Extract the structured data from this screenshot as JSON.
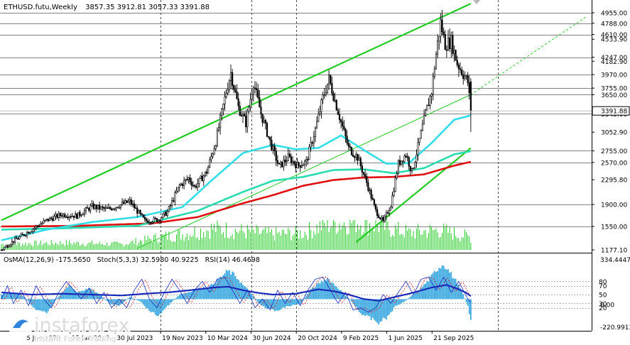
{
  "header": {
    "symbol": "ETHUSD.futu,Weekly",
    "ohlc": "3857.35 3912.81 3057.33 3391.88"
  },
  "osc_header": {
    "osma": "OsMA(12,26,9) -175.5650",
    "stoch": "Stoch(5,3,3) 32.5980 40.9225",
    "rsi": "RSI(14) 46.4698"
  },
  "watermark": {
    "brand": "instaforex",
    "tagline": "Instant Forex Trading"
  },
  "colors": {
    "price_bars": "#000000",
    "ma_fast": "#33dde8",
    "ma_mid": "#2adcb0",
    "ma_slow": "#e01010",
    "channel": "#22cc22",
    "volume": "#22cc22",
    "osma_hist": "#3aa8e0",
    "stoch_main": "#1a2ab8",
    "stoch_signal": "#e01010",
    "level_line": "#5a5a5a",
    "grid": "#202020",
    "current_price_box": "#000000"
  },
  "chart_data": [
    {
      "type": "candlestick",
      "title": "ETHUSD.futu,Weekly",
      "ohlc_last": {
        "open": 3857.35,
        "high": 3912.81,
        "low": 3057.33,
        "close": 3391.88
      },
      "x_tick_labels": [
        "5 Jun 2022",
        "15 Jan 2023",
        "30 Jul 2023",
        "19 Nov 2023",
        "10 Mar 2024",
        "30 Jun 2024",
        "20 Oct 2024",
        "9 Feb 2025",
        "1 Jun 2025",
        "21 Sep 2025"
      ],
      "x_dividers": [
        3,
        5,
        6
      ],
      "y_tick_labels": [
        {
          "value": 4955.0,
          "label": "4955.00"
        },
        {
          "value": 4788.0,
          "label": "4788.00"
        },
        {
          "value": 4610.0,
          "label": "4610.00"
        },
        {
          "value": 4533.9,
          "label": "4533.90"
        },
        {
          "value": 4247.0,
          "label": "4247.00"
        },
        {
          "value": 4182.9,
          "label": "4182.90"
        },
        {
          "value": 3970.0,
          "label": "3970.00"
        },
        {
          "value": 3755.0,
          "label": "3755.00"
        },
        {
          "value": 3650.0,
          "label": "3650.00"
        },
        {
          "value": 3345.0,
          "label": "3345.00"
        },
        {
          "value": 3052.9,
          "label": "3052.90"
        },
        {
          "value": 2755.0,
          "label": "2755.00"
        },
        {
          "value": 2570.0,
          "label": "2570.00"
        },
        {
          "value": 2295.8,
          "label": "2295.80"
        },
        {
          "value": 1900.0,
          "label": "1900.00"
        },
        {
          "value": 1550.0,
          "label": "1550.00"
        },
        {
          "value": 1177.1,
          "label": "1177.10"
        }
      ],
      "horizontal_levels": [
        4955,
        4788,
        4610,
        4247,
        3970,
        3755,
        3650,
        3345,
        2755,
        2570,
        1900,
        1550
      ],
      "current_price": 3391.88,
      "ylim": [
        1177.1,
        4955
      ],
      "price_path": [
        [
          0,
          1180
        ],
        [
          8,
          1320
        ],
        [
          20,
          1500
        ],
        [
          30,
          1650
        ],
        [
          40,
          1740
        ],
        [
          50,
          1720
        ],
        [
          60,
          1870
        ],
        [
          70,
          1820
        ],
        [
          85,
          1950
        ],
        [
          95,
          1640
        ],
        [
          104,
          1660
        ],
        [
          110,
          1780
        ],
        [
          118,
          2200
        ],
        [
          124,
          2320
        ],
        [
          128,
          2180
        ],
        [
          136,
          2420
        ],
        [
          142,
          2900
        ],
        [
          149,
          3700
        ],
        [
          152,
          4000
        ],
        [
          157,
          3450
        ],
        [
          162,
          3200
        ],
        [
          167,
          3850
        ],
        [
          172,
          3350
        ],
        [
          178,
          2900
        ],
        [
          184,
          2500
        ],
        [
          190,
          2650
        ],
        [
          196,
          2520
        ],
        [
          202,
          2580
        ],
        [
          208,
          3100
        ],
        [
          213,
          3600
        ],
        [
          217,
          3900
        ],
        [
          224,
          3300
        ],
        [
          230,
          2800
        ],
        [
          236,
          2650
        ],
        [
          242,
          2250
        ],
        [
          248,
          1800
        ],
        [
          253,
          1620
        ],
        [
          258,
          1900
        ],
        [
          263,
          2550
        ],
        [
          268,
          2700
        ],
        [
          272,
          2420
        ],
        [
          276,
          2820
        ],
        [
          281,
          3350
        ],
        [
          285,
          3700
        ],
        [
          288,
          4300
        ],
        [
          291,
          4800
        ],
        [
          294,
          4450
        ],
        [
          298,
          4500
        ],
        [
          302,
          4150
        ],
        [
          306,
          3980
        ],
        [
          309,
          3850
        ],
        [
          311,
          3391.88
        ]
      ],
      "ma_fast": [
        [
          0,
          1330
        ],
        [
          30,
          1500
        ],
        [
          60,
          1620
        ],
        [
          90,
          1700
        ],
        [
          120,
          1860
        ],
        [
          140,
          2300
        ],
        [
          160,
          2720
        ],
        [
          180,
          2850
        ],
        [
          195,
          2780
        ],
        [
          210,
          2800
        ],
        [
          225,
          3000
        ],
        [
          240,
          2770
        ],
        [
          255,
          2550
        ],
        [
          270,
          2560
        ],
        [
          285,
          2880
        ],
        [
          300,
          3250
        ],
        [
          311,
          3320
        ]
      ],
      "ma_mid": [
        [
          0,
          1500
        ],
        [
          40,
          1520
        ],
        [
          90,
          1560
        ],
        [
          130,
          1800
        ],
        [
          160,
          2100
        ],
        [
          180,
          2280
        ],
        [
          200,
          2340
        ],
        [
          220,
          2450
        ],
        [
          240,
          2460
        ],
        [
          260,
          2400
        ],
        [
          280,
          2480
        ],
        [
          300,
          2700
        ],
        [
          311,
          2750
        ]
      ],
      "ma_slow": [
        [
          0,
          1550
        ],
        [
          50,
          1560
        ],
        [
          100,
          1600
        ],
        [
          130,
          1700
        ],
        [
          160,
          1920
        ],
        [
          180,
          2050
        ],
        [
          200,
          2200
        ],
        [
          220,
          2290
        ],
        [
          240,
          2330
        ],
        [
          260,
          2340
        ],
        [
          280,
          2380
        ],
        [
          300,
          2520
        ],
        [
          311,
          2580
        ]
      ],
      "channel_upper": [
        [
          0,
          1650
        ],
        [
          311,
          5100
        ]
      ],
      "channel_lower": [
        [
          235,
          1300
        ],
        [
          311,
          2800
        ]
      ],
      "channel_mid": [
        [
          90,
          1200
        ],
        [
          311,
          3650
        ]
      ],
      "channel_mid_extension": [
        [
          311,
          3650
        ],
        [
          388,
          4900
        ]
      ],
      "volume_profile": [
        [
          0,
          0.2
        ],
        [
          40,
          0.25
        ],
        [
          80,
          0.2
        ],
        [
          105,
          0.45
        ],
        [
          120,
          0.55
        ],
        [
          140,
          0.75
        ],
        [
          160,
          0.65
        ],
        [
          180,
          0.55
        ],
        [
          200,
          0.6
        ],
        [
          215,
          0.9
        ],
        [
          235,
          1.0
        ],
        [
          250,
          0.85
        ],
        [
          270,
          0.6
        ],
        [
          290,
          0.7
        ],
        [
          311,
          0.45
        ]
      ]
    },
    {
      "type": "bar",
      "title": "OsMA(12,26,9) -175.5650",
      "current": -175.565,
      "ylim": [
        -220.9913,
        334.4447
      ],
      "y_tick_labels": [
        {
          "value": 334.4447,
          "label": "334.4447"
        },
        {
          "value": 0.0,
          "label": "0.00"
        },
        {
          "value": -220.9913,
          "label": "-220.9913"
        }
      ],
      "histogram_path": [
        [
          0,
          40
        ],
        [
          8,
          60
        ],
        [
          15,
          20
        ],
        [
          22,
          -80
        ],
        [
          30,
          -120
        ],
        [
          37,
          10
        ],
        [
          45,
          120
        ],
        [
          50,
          60
        ],
        [
          58,
          90
        ],
        [
          65,
          40
        ],
        [
          72,
          -40
        ],
        [
          78,
          -60
        ],
        [
          85,
          20
        ],
        [
          92,
          -20
        ],
        [
          99,
          -110
        ],
        [
          104,
          -140
        ],
        [
          110,
          -60
        ],
        [
          118,
          40
        ],
        [
          124,
          60
        ],
        [
          130,
          90
        ],
        [
          138,
          110
        ],
        [
          145,
          180
        ],
        [
          150,
          240
        ],
        [
          155,
          200
        ],
        [
          160,
          120
        ],
        [
          165,
          60
        ],
        [
          170,
          -30
        ],
        [
          176,
          -80
        ],
        [
          182,
          -100
        ],
        [
          190,
          -60
        ],
        [
          198,
          -40
        ],
        [
          205,
          80
        ],
        [
          211,
          140
        ],
        [
          216,
          180
        ],
        [
          220,
          130
        ],
        [
          226,
          60
        ],
        [
          232,
          -20
        ],
        [
          238,
          -120
        ],
        [
          244,
          -160
        ],
        [
          250,
          -200
        ],
        [
          256,
          -150
        ],
        [
          261,
          -60
        ],
        [
          267,
          -20
        ],
        [
          272,
          30
        ],
        [
          277,
          80
        ],
        [
          283,
          160
        ],
        [
          289,
          260
        ],
        [
          293,
          300
        ],
        [
          297,
          230
        ],
        [
          302,
          140
        ],
        [
          306,
          40
        ],
        [
          309,
          -60
        ],
        [
          311,
          -175.565
        ]
      ]
    },
    {
      "type": "line",
      "title": "Stoch(5,3,3) 32.5980 40.9225 / RSI(14) 46.4698",
      "ylim": [
        0,
        100
      ],
      "levels": [
        80,
        70,
        50,
        30,
        20
      ],
      "y_tick_labels": [
        {
          "value": 80,
          "label": "80"
        },
        {
          "value": 70,
          "label": "70"
        },
        {
          "value": 50,
          "label": "50"
        },
        {
          "value": 30,
          "label": "30"
        },
        {
          "value": 20,
          "label": "20"
        }
      ],
      "series": [
        {
          "name": "Stoch(5,3,3)",
          "current": 32.598,
          "signal_current": 40.9225
        },
        {
          "name": "RSI(14)",
          "current": 46.4698
        }
      ],
      "stoch_main": [
        [
          0,
          40
        ],
        [
          4,
          70
        ],
        [
          8,
          30
        ],
        [
          13,
          60
        ],
        [
          18,
          25
        ],
        [
          23,
          70
        ],
        [
          28,
          40
        ],
        [
          33,
          20
        ],
        [
          38,
          55
        ],
        [
          43,
          80
        ],
        [
          48,
          60
        ],
        [
          53,
          40
        ],
        [
          58,
          65
        ],
        [
          63,
          30
        ],
        [
          68,
          55
        ],
        [
          73,
          20
        ],
        [
          78,
          40
        ],
        [
          83,
          20
        ],
        [
          88,
          60
        ],
        [
          93,
          85
        ],
        [
          98,
          40
        ],
        [
          103,
          20
        ],
        [
          108,
          55
        ],
        [
          113,
          85
        ],
        [
          118,
          60
        ],
        [
          123,
          30
        ],
        [
          128,
          60
        ],
        [
          133,
          80
        ],
        [
          138,
          55
        ],
        [
          143,
          85
        ],
        [
          148,
          90
        ],
        [
          153,
          60
        ],
        [
          158,
          30
        ],
        [
          163,
          60
        ],
        [
          168,
          20
        ],
        [
          173,
          40
        ],
        [
          178,
          15
        ],
        [
          183,
          60
        ],
        [
          188,
          30
        ],
        [
          193,
          55
        ],
        [
          198,
          25
        ],
        [
          203,
          60
        ],
        [
          208,
          85
        ],
        [
          213,
          90
        ],
        [
          218,
          60
        ],
        [
          223,
          30
        ],
        [
          228,
          55
        ],
        [
          233,
          15
        ],
        [
          238,
          20
        ],
        [
          243,
          10
        ],
        [
          248,
          20
        ],
        [
          253,
          50
        ],
        [
          258,
          30
        ],
        [
          263,
          55
        ],
        [
          268,
          80
        ],
        [
          273,
          50
        ],
        [
          278,
          85
        ],
        [
          283,
          90
        ],
        [
          288,
          60
        ],
        [
          293,
          90
        ],
        [
          298,
          55
        ],
        [
          303,
          80
        ],
        [
          306,
          60
        ],
        [
          309,
          40
        ],
        [
          311,
          32.598
        ]
      ],
      "rsi_path": [
        [
          0,
          55
        ],
        [
          20,
          50
        ],
        [
          40,
          52
        ],
        [
          60,
          50
        ],
        [
          80,
          48
        ],
        [
          95,
          52
        ],
        [
          110,
          55
        ],
        [
          125,
          60
        ],
        [
          140,
          66
        ],
        [
          150,
          68
        ],
        [
          160,
          60
        ],
        [
          170,
          54
        ],
        [
          180,
          50
        ],
        [
          195,
          52
        ],
        [
          210,
          62
        ],
        [
          220,
          58
        ],
        [
          230,
          50
        ],
        [
          240,
          40
        ],
        [
          250,
          36
        ],
        [
          260,
          44
        ],
        [
          270,
          52
        ],
        [
          285,
          66
        ],
        [
          295,
          72
        ],
        [
          303,
          62
        ],
        [
          308,
          54
        ],
        [
          311,
          46.4698
        ]
      ]
    }
  ]
}
